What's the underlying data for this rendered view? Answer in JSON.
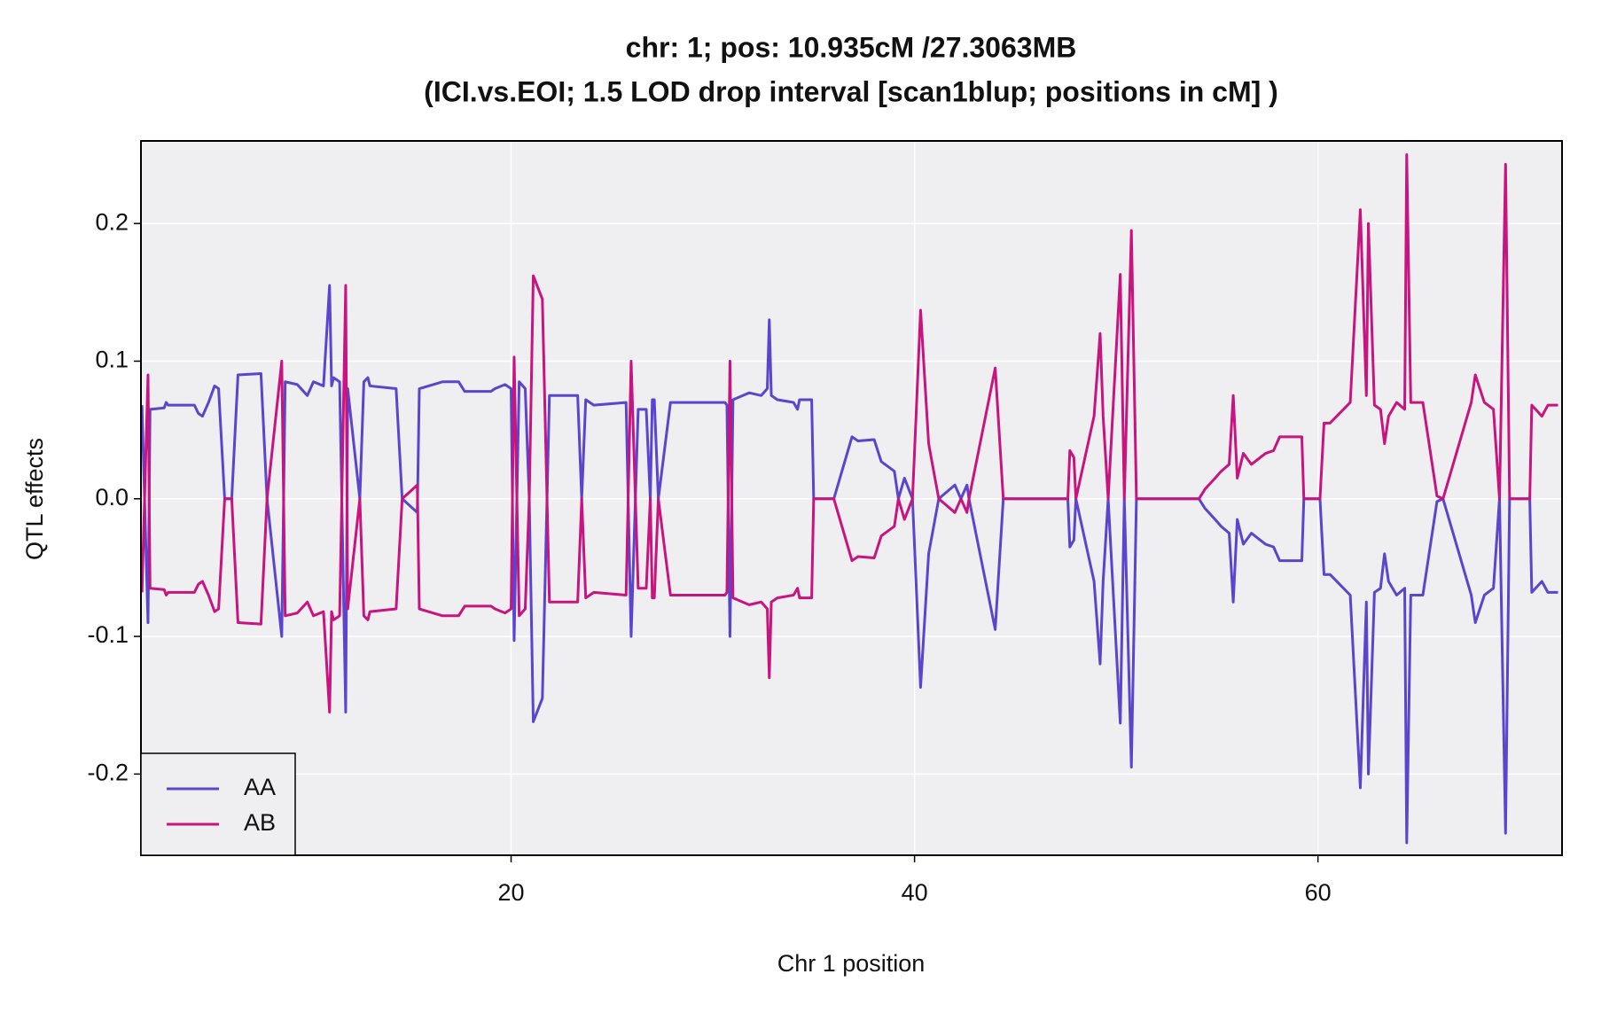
{
  "chart_data": {
    "type": "line",
    "title": "chr: 1; pos: 10.935cM /27.3063MB",
    "subtitle": "(ICI.vs.EOI; 1.5 LOD drop interval [scan1blup; positions in cM] )",
    "xlabel": "Chr 1 position",
    "ylabel": "QTL effects",
    "x": [
      1.7,
      2.0,
      2.1,
      2.8,
      2.9,
      3.0,
      4.3,
      4.5,
      4.7,
      5.0,
      5.3,
      5.5,
      5.8,
      6.15,
      6.46,
      7.6,
      7.9,
      8.63,
      8.8,
      9.4,
      9.9,
      10.2,
      10.7,
      11.0,
      11.1,
      11.2,
      11.5,
      11.8,
      11.9,
      12.5,
      12.7,
      12.9,
      13.0,
      14.3,
      14.6,
      15.35,
      15.45,
      16.6,
      17.4,
      17.7,
      19.0,
      19.2,
      19.7,
      20.0,
      20.15,
      20.4,
      20.7,
      20.9,
      21.1,
      21.55,
      21.9,
      23.3,
      23.5,
      23.7,
      24.1,
      25.7,
      25.95,
      26.3,
      26.7,
      26.9,
      27.0,
      27.1,
      27.3,
      27.9,
      30.6,
      30.7,
      30.85,
      31.0,
      31.8,
      32.4,
      32.7,
      32.8,
      32.9,
      33.2,
      34.0,
      34.2,
      34.3,
      34.9,
      35.0,
      36.0,
      36.4,
      36.9,
      37.2,
      38.0,
      38.35,
      39.0,
      39.2,
      39.5,
      39.9,
      40.3,
      40.7,
      41.2,
      42.0,
      42.3,
      42.6,
      42.7,
      44.0,
      44.4,
      47.6,
      47.7,
      47.9,
      48.0,
      48.9,
      49.2,
      49.35,
      49.6,
      50.2,
      50.4,
      50.75,
      51.0,
      54.1,
      54.4,
      54.9,
      55.2,
      55.6,
      55.8,
      56.0,
      56.3,
      56.7,
      57.4,
      57.8,
      58.1,
      59.2,
      59.3,
      60.1,
      60.3,
      60.6,
      61.6,
      62.1,
      62.4,
      62.5,
      62.8,
      63.1,
      63.3,
      63.5,
      63.9,
      64.3,
      64.4,
      64.6,
      65.2,
      65.9,
      66.2,
      67.6,
      67.8,
      68.25,
      68.7,
      69.0,
      69.3,
      69.5,
      70.5,
      70.6,
      71.1,
      71.4,
      71.9
    ],
    "series": [
      {
        "name": "AA",
        "color": "#5a45cc",
        "values": [
          0.068,
          -0.09,
          0.065,
          0.066,
          0.07,
          0.068,
          0.068,
          0.062,
          0.06,
          0.07,
          0.082,
          0.08,
          0,
          0,
          0.09,
          0.091,
          0,
          -0.1,
          0.085,
          0.083,
          0.075,
          0.085,
          0.082,
          0.155,
          0.082,
          0.088,
          0.085,
          -0.155,
          0.08,
          0,
          0.085,
          0.088,
          0.082,
          0.08,
          0,
          -0.01,
          0.08,
          0.085,
          0.085,
          0.078,
          0.078,
          0.08,
          0.083,
          0.08,
          -0.103,
          0.085,
          0.08,
          0,
          -0.162,
          -0.145,
          0.075,
          0.075,
          0,
          0.072,
          0.068,
          0.07,
          -0.1,
          0.065,
          0.065,
          0,
          0.072,
          0.072,
          0,
          0.07,
          0.07,
          0.068,
          -0.1,
          0.072,
          0.077,
          0.075,
          0.08,
          0.13,
          0.075,
          0.072,
          0.07,
          0.065,
          0.072,
          0.072,
          0,
          0,
          0.02,
          0.045,
          0.042,
          0.043,
          0.027,
          0.02,
          0,
          0.015,
          0,
          -0.137,
          -0.04,
          0,
          0.01,
          0,
          0.01,
          0,
          -0.095,
          0,
          0,
          -0.035,
          -0.03,
          0,
          -0.06,
          -0.12,
          -0.06,
          0,
          -0.163,
          0,
          -0.195,
          0,
          0,
          -0.007,
          -0.015,
          -0.02,
          -0.025,
          -0.075,
          -0.015,
          -0.033,
          -0.025,
          -0.033,
          -0.035,
          -0.045,
          -0.045,
          0,
          0,
          -0.055,
          -0.055,
          -0.07,
          -0.21,
          -0.075,
          -0.2,
          -0.068,
          -0.065,
          -0.04,
          -0.06,
          -0.07,
          -0.065,
          -0.25,
          -0.07,
          -0.07,
          -0.002,
          0,
          -0.07,
          -0.09,
          -0.07,
          -0.065,
          0,
          -0.243,
          0,
          0,
          -0.068,
          -0.06,
          -0.068,
          -0.068
        ]
      },
      {
        "name": "AB",
        "color": "#c8147e",
        "values": [
          -0.068,
          0.09,
          -0.065,
          -0.066,
          -0.07,
          -0.068,
          -0.068,
          -0.062,
          -0.06,
          -0.07,
          -0.082,
          -0.08,
          0,
          0,
          -0.09,
          -0.091,
          0,
          0.1,
          -0.085,
          -0.083,
          -0.075,
          -0.085,
          -0.082,
          -0.155,
          -0.082,
          -0.088,
          -0.085,
          0.155,
          -0.08,
          0,
          -0.085,
          -0.088,
          -0.082,
          -0.08,
          0,
          0.01,
          -0.08,
          -0.085,
          -0.085,
          -0.078,
          -0.078,
          -0.08,
          -0.083,
          -0.08,
          0.103,
          -0.085,
          -0.08,
          0,
          0.162,
          0.145,
          -0.075,
          -0.075,
          0,
          -0.072,
          -0.068,
          -0.07,
          0.1,
          -0.065,
          -0.065,
          0,
          -0.072,
          -0.072,
          0,
          -0.07,
          -0.07,
          -0.068,
          0.1,
          -0.072,
          -0.077,
          -0.075,
          -0.08,
          -0.13,
          -0.075,
          -0.072,
          -0.07,
          -0.065,
          -0.072,
          -0.072,
          0,
          0,
          -0.02,
          -0.045,
          -0.042,
          -0.043,
          -0.027,
          -0.02,
          0,
          -0.015,
          0,
          0.137,
          0.04,
          0,
          -0.01,
          0,
          -0.01,
          0,
          0.095,
          0,
          0,
          0.035,
          0.03,
          0,
          0.06,
          0.12,
          0.06,
          0,
          0.163,
          0,
          0.195,
          0,
          0,
          0.007,
          0.015,
          0.02,
          0.025,
          0.075,
          0.015,
          0.033,
          0.025,
          0.033,
          0.035,
          0.045,
          0.045,
          0,
          0,
          0.055,
          0.055,
          0.07,
          0.21,
          0.075,
          0.2,
          0.068,
          0.065,
          0.04,
          0.06,
          0.07,
          0.065,
          0.25,
          0.07,
          0.07,
          0.002,
          0,
          0.07,
          0.09,
          0.07,
          0.065,
          0,
          0.243,
          0,
          0,
          0.068,
          0.06,
          0.068,
          0.068
        ]
      }
    ],
    "xlim": [
      1.65,
      72.1
    ],
    "ylim": [
      -0.259,
      0.26
    ],
    "xticks": [
      20,
      40,
      60
    ],
    "yticks": [
      -0.2,
      -0.1,
      {
        "value": 0,
        "label": "0.0"
      },
      0.1,
      0.2
    ],
    "grid": true,
    "legend": "bottom-left"
  }
}
